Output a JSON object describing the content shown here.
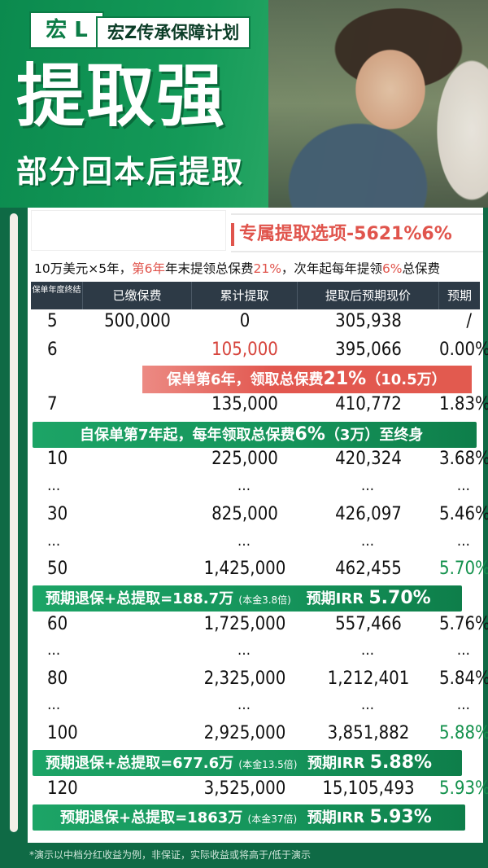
{
  "header": {
    "brand": "宏 L",
    "plan_name": "宏Z传承保障计划",
    "headline": "提取强",
    "subline": "部分回本后提取"
  },
  "option_tag": "专属提取选项-5621%6%",
  "description": {
    "p1": "10万美元×5年，",
    "p2": "第6年",
    "p3": "年末提领总保费",
    "p4": "21%",
    "p5": "，次年起每年提领",
    "p6": "6%",
    "p7": "总保费"
  },
  "table": {
    "headers": {
      "year": "保单年度终结",
      "paid": "已缴保费",
      "withdrawn": "累计提取",
      "cash_value": "提取后预期现价",
      "irr": "预期IRR"
    },
    "rows": [
      {
        "year": "5",
        "paid": "500,000",
        "withdrawn": "0",
        "cash_value": "305,938",
        "irr": "/"
      },
      {
        "year": "6",
        "paid": "",
        "withdrawn": "105,000",
        "cash_value": "395,066",
        "irr": "0.00%"
      },
      {
        "year": "7",
        "paid": "",
        "withdrawn": "135,000",
        "cash_value": "410,772",
        "irr": "1.83%"
      },
      {
        "year": "10",
        "paid": "",
        "withdrawn": "225,000",
        "cash_value": "420,324",
        "irr": "3.68%"
      },
      {
        "year": "…",
        "paid": "",
        "withdrawn": "…",
        "cash_value": "…",
        "irr": "…"
      },
      {
        "year": "30",
        "paid": "",
        "withdrawn": "825,000",
        "cash_value": "426,097",
        "irr": "5.46%"
      },
      {
        "year": "…",
        "paid": "",
        "withdrawn": "…",
        "cash_value": "…",
        "irr": "…"
      },
      {
        "year": "50",
        "paid": "",
        "withdrawn": "1,425,000",
        "cash_value": "462,455",
        "irr": "5.70%"
      },
      {
        "year": "60",
        "paid": "",
        "withdrawn": "1,725,000",
        "cash_value": "557,466",
        "irr": "5.76%"
      },
      {
        "year": "…",
        "paid": "",
        "withdrawn": "…",
        "cash_value": "…",
        "irr": "…"
      },
      {
        "year": "80",
        "paid": "",
        "withdrawn": "2,325,000",
        "cash_value": "1,212,401",
        "irr": "5.84%"
      },
      {
        "year": "…",
        "paid": "",
        "withdrawn": "…",
        "cash_value": "…",
        "irr": "…"
      },
      {
        "year": "100",
        "paid": "",
        "withdrawn": "2,925,000",
        "cash_value": "3,851,882",
        "irr": "5.88%"
      },
      {
        "year": "120",
        "paid": "",
        "withdrawn": "3,525,000",
        "cash_value": "15,105,493",
        "irr": "5.93%"
      }
    ]
  },
  "bands": {
    "year6": {
      "a": "保单第6年，领取总保费",
      "b": "21%",
      "c": "（10.5万）"
    },
    "year7": {
      "a": "自保单第7年起，每年领取总保费",
      "b": "6%",
      "c": "（3万）至终身"
    },
    "year50": {
      "a": "预期退保+总提取=188.7万",
      "b": "(本金3.8倍)",
      "c": "预期IRR",
      "d": "5.70%"
    },
    "year100": {
      "a": "预期退保+总提取=677.6万",
      "b": "(本金13.5倍)",
      "c": "预期IRR",
      "d": "5.88%"
    },
    "year120": {
      "a": "预期退保+总提取=1863万",
      "b": "(本金37倍)",
      "c": "预期IRR",
      "d": "5.93%"
    }
  },
  "footer": "*演示以中档分红收益为例，非保证，实际收益或将高于/低于演示",
  "colors": {
    "green": "#0f6a45",
    "red": "#e0544c",
    "header_dark": "#2d3a46"
  }
}
